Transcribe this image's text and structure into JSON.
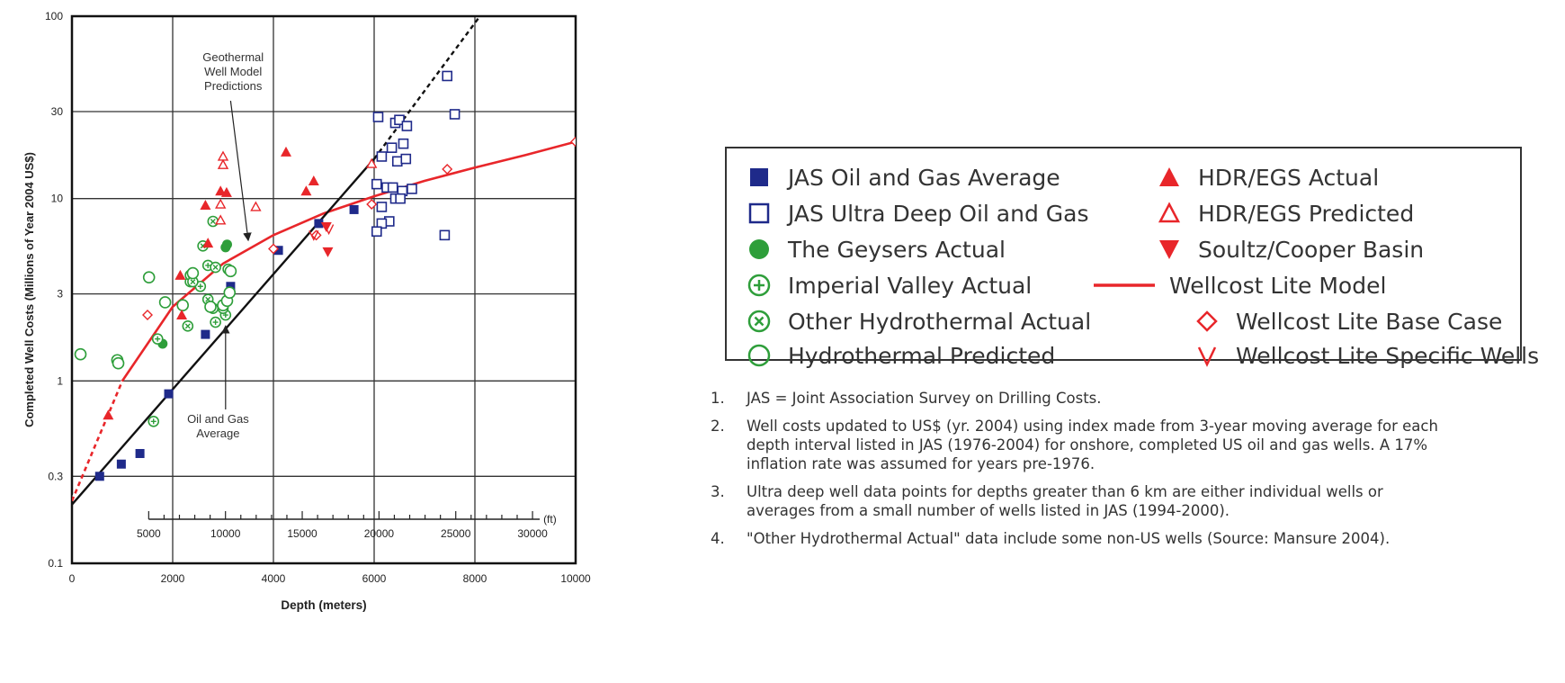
{
  "chart_data": {
    "type": "scatter",
    "xlabel": "Depth (meters)",
    "ylabel": "Completed Well Costs (Millions of Year 2004 US$)",
    "xlim": [
      0,
      10000
    ],
    "ylim": [
      0.1,
      100
    ],
    "y_scale": "log",
    "x_ticks": [
      "0",
      "2000",
      "4000",
      "6000",
      "8000",
      "10000"
    ],
    "y_ticks": [
      "0.1",
      "0.3",
      "1",
      "3",
      "10",
      "30",
      "100"
    ],
    "secondary_axis": {
      "unit": "(ft)",
      "ticks": [
        "5000",
        "10000",
        "15000",
        "20000",
        "25000",
        "30000"
      ]
    },
    "grid": true,
    "annotations": {
      "geothermal": "Geothermal\nWell Model\nPredictions",
      "oil_gas": "Oil and Gas\nAverage"
    },
    "series": [
      {
        "name": "JAS Oil and Gas Average",
        "color": "#1f2a8a",
        "marker": "filled-square",
        "points": [
          [
            550,
            0.3
          ],
          [
            980,
            0.35
          ],
          [
            1350,
            0.4
          ],
          [
            1920,
            0.85
          ],
          [
            2650,
            1.8
          ],
          [
            3150,
            3.3
          ],
          [
            4100,
            5.2
          ],
          [
            4900,
            7.3
          ],
          [
            5600,
            8.7
          ]
        ]
      },
      {
        "name": "JAS Ultra Deep Oil and Gas",
        "color": "#1f2a8a",
        "marker": "open-square",
        "points": [
          [
            6080,
            28
          ],
          [
            6420,
            26
          ],
          [
            6500,
            27
          ],
          [
            6650,
            25
          ],
          [
            6580,
            20
          ],
          [
            6350,
            19
          ],
          [
            6150,
            17
          ],
          [
            6460,
            16
          ],
          [
            6630,
            16.5
          ],
          [
            6050,
            12
          ],
          [
            6250,
            11.5
          ],
          [
            6370,
            11.5
          ],
          [
            6560,
            11
          ],
          [
            6750,
            11.3
          ],
          [
            6420,
            10
          ],
          [
            6520,
            10
          ],
          [
            6150,
            9
          ],
          [
            6300,
            7.5
          ],
          [
            6150,
            7.3
          ],
          [
            6050,
            6.6
          ],
          [
            7450,
            47
          ],
          [
            7600,
            29
          ],
          [
            7400,
            6.3
          ]
        ]
      },
      {
        "name": "The Geysers Actual",
        "color": "#2e9e3a",
        "marker": "filled-circle",
        "points": [
          [
            1800,
            1.6
          ],
          [
            3050,
            5.4
          ],
          [
            3080,
            5.6
          ]
        ]
      },
      {
        "name": "Imperial Valley Actual",
        "color": "#2e9e3a",
        "marker": "circle-plus",
        "points": [
          [
            1620,
            0.6
          ],
          [
            1700,
            1.7
          ],
          [
            2350,
            3.5
          ],
          [
            2700,
            4.3
          ],
          [
            2850,
            2.1
          ],
          [
            3100,
            4.1
          ],
          [
            2550,
            3.3
          ],
          [
            3050,
            2.3
          ]
        ]
      },
      {
        "name": "Other Hydrothermal Actual",
        "color": "#2e9e3a",
        "marker": "circle-x",
        "points": [
          [
            2300,
            2
          ],
          [
            2350,
            3.8
          ],
          [
            2400,
            3.5
          ],
          [
            2700,
            2.8
          ],
          [
            2800,
            2.5
          ],
          [
            2800,
            7.5
          ],
          [
            2600,
            5.5
          ],
          [
            3000,
            2.5
          ],
          [
            2850,
            4.2
          ]
        ]
      },
      {
        "name": "Hydrothermal Predicted",
        "color": "#2e9e3a",
        "marker": "open-circle",
        "points": [
          [
            170,
            1.4
          ],
          [
            900,
            1.3
          ],
          [
            920,
            1.25
          ],
          [
            1530,
            3.7
          ],
          [
            1850,
            2.7
          ],
          [
            2400,
            3.9
          ],
          [
            2200,
            2.6
          ],
          [
            2750,
            2.55
          ],
          [
            3000,
            2.6
          ],
          [
            3080,
            2.75
          ],
          [
            3130,
            3.05
          ],
          [
            3150,
            4
          ]
        ]
      },
      {
        "name": "HDR/EGS Actual",
        "color": "#e8262a",
        "marker": "filled-triangle-up",
        "points": [
          [
            720,
            0.65
          ],
          [
            2150,
            3.8
          ],
          [
            2180,
            2.3
          ],
          [
            2650,
            9.2
          ],
          [
            2700,
            5.7
          ],
          [
            2950,
            11
          ],
          [
            3070,
            10.8
          ],
          [
            4250,
            18
          ],
          [
            4650,
            11
          ],
          [
            4800,
            12.5
          ]
        ]
      },
      {
        "name": "HDR/EGS Predicted",
        "color": "#e8262a",
        "marker": "open-triangle-up",
        "points": [
          [
            3000,
            17
          ],
          [
            3000,
            15.3
          ],
          [
            2950,
            9.3
          ],
          [
            2950,
            7.6
          ],
          [
            3650,
            9
          ],
          [
            5950,
            15.5
          ]
        ]
      },
      {
        "name": "Soultz/Cooper Basin",
        "color": "#e8262a",
        "marker": "filled-triangle-down",
        "points": [
          [
            5050,
            7
          ],
          [
            5080,
            5.1
          ]
        ]
      },
      {
        "name": "Wellcost Lite Base Case",
        "color": "#e8262a",
        "marker": "open-diamond",
        "points": [
          [
            1500,
            2.3
          ],
          [
            4000,
            5.3
          ],
          [
            4850,
            6.3
          ],
          [
            5950,
            9.3
          ],
          [
            7450,
            14.5
          ],
          [
            10000,
            20.5
          ]
        ]
      },
      {
        "name": "Wellcost Lite Specific Wells",
        "color": "#e8262a",
        "marker": "open-triangle-down",
        "points": [
          [
            4800,
            6.3
          ],
          [
            5100,
            6.8
          ]
        ]
      },
      {
        "name": "Wellcost Lite Model",
        "color": "#e8262a",
        "marker": "line",
        "points": [
          [
            0,
            0.22
          ],
          [
            1000,
            1
          ],
          [
            2000,
            2.55
          ],
          [
            3000,
            4.4
          ],
          [
            4000,
            6.3
          ],
          [
            5000,
            8.3
          ],
          [
            6000,
            10.3
          ],
          [
            7000,
            12.5
          ],
          [
            8000,
            14.8
          ],
          [
            9000,
            17.3
          ],
          [
            10000,
            20.5
          ]
        ]
      },
      {
        "name": "Oil and Gas Average",
        "color": "#111111",
        "marker": "line",
        "points": [
          [
            0,
            0.21
          ],
          [
            6000,
            16.5
          ]
        ]
      },
      {
        "name": "Oil and Gas Average (extrapolated)",
        "color": "#111111",
        "marker": "dashed-line",
        "points": [
          [
            6000,
            16.5
          ],
          [
            8100,
            100
          ]
        ]
      }
    ]
  },
  "legend": {
    "items": [
      {
        "label": "JAS Oil and Gas Average",
        "icon": "filled-square-icon",
        "color": "#1f2a8a"
      },
      {
        "label": "JAS Ultra Deep Oil and Gas",
        "icon": "open-square-icon",
        "color": "#1f2a8a"
      },
      {
        "label": "The Geysers Actual",
        "icon": "filled-circle-icon",
        "color": "#2e9e3a"
      },
      {
        "label": "Imperial Valley Actual",
        "icon": "circle-plus-icon",
        "color": "#2e9e3a"
      },
      {
        "label": "Other Hydrothermal Actual",
        "icon": "circle-x-icon",
        "color": "#2e9e3a"
      },
      {
        "label": "Hydrothermal Predicted",
        "icon": "open-circle-icon",
        "color": "#2e9e3a"
      },
      {
        "label": "HDR/EGS Actual",
        "icon": "filled-triangle-up-icon",
        "color": "#e8262a"
      },
      {
        "label": "HDR/EGS Predicted",
        "icon": "open-triangle-up-icon",
        "color": "#e8262a"
      },
      {
        "label": "Soultz/Cooper Basin",
        "icon": "filled-triangle-down-icon",
        "color": "#e8262a"
      },
      {
        "label": "Wellcost Lite Model",
        "icon": "line-icon",
        "color": "#e8262a"
      },
      {
        "label": "Wellcost Lite Base Case",
        "icon": "open-diamond-icon",
        "color": "#e8262a"
      },
      {
        "label": "Wellcost Lite Specific Wells",
        "icon": "open-triangle-down-icon",
        "color": "#e8262a"
      }
    ]
  },
  "notes": [
    {
      "num": "1.",
      "text": "JAS = Joint Association Survey on Drilling Costs."
    },
    {
      "num": "2.",
      "text": "Well costs updated to US$ (yr. 2004) using index made from 3-year moving average for each depth interval listed in JAS (1976-2004) for onshore, completed US oil and gas wells. A 17% inflation rate was assumed for years pre-1976."
    },
    {
      "num": "3.",
      "text": "Ultra deep well data points for depths greater than 6 km are either individual wells or averages from a small number of wells listed in JAS (1994-2000)."
    },
    {
      "num": "4.",
      "text": "\"Other Hydrothermal Actual\" data include some non-US wells (Source: Mansure 2004)."
    }
  ]
}
